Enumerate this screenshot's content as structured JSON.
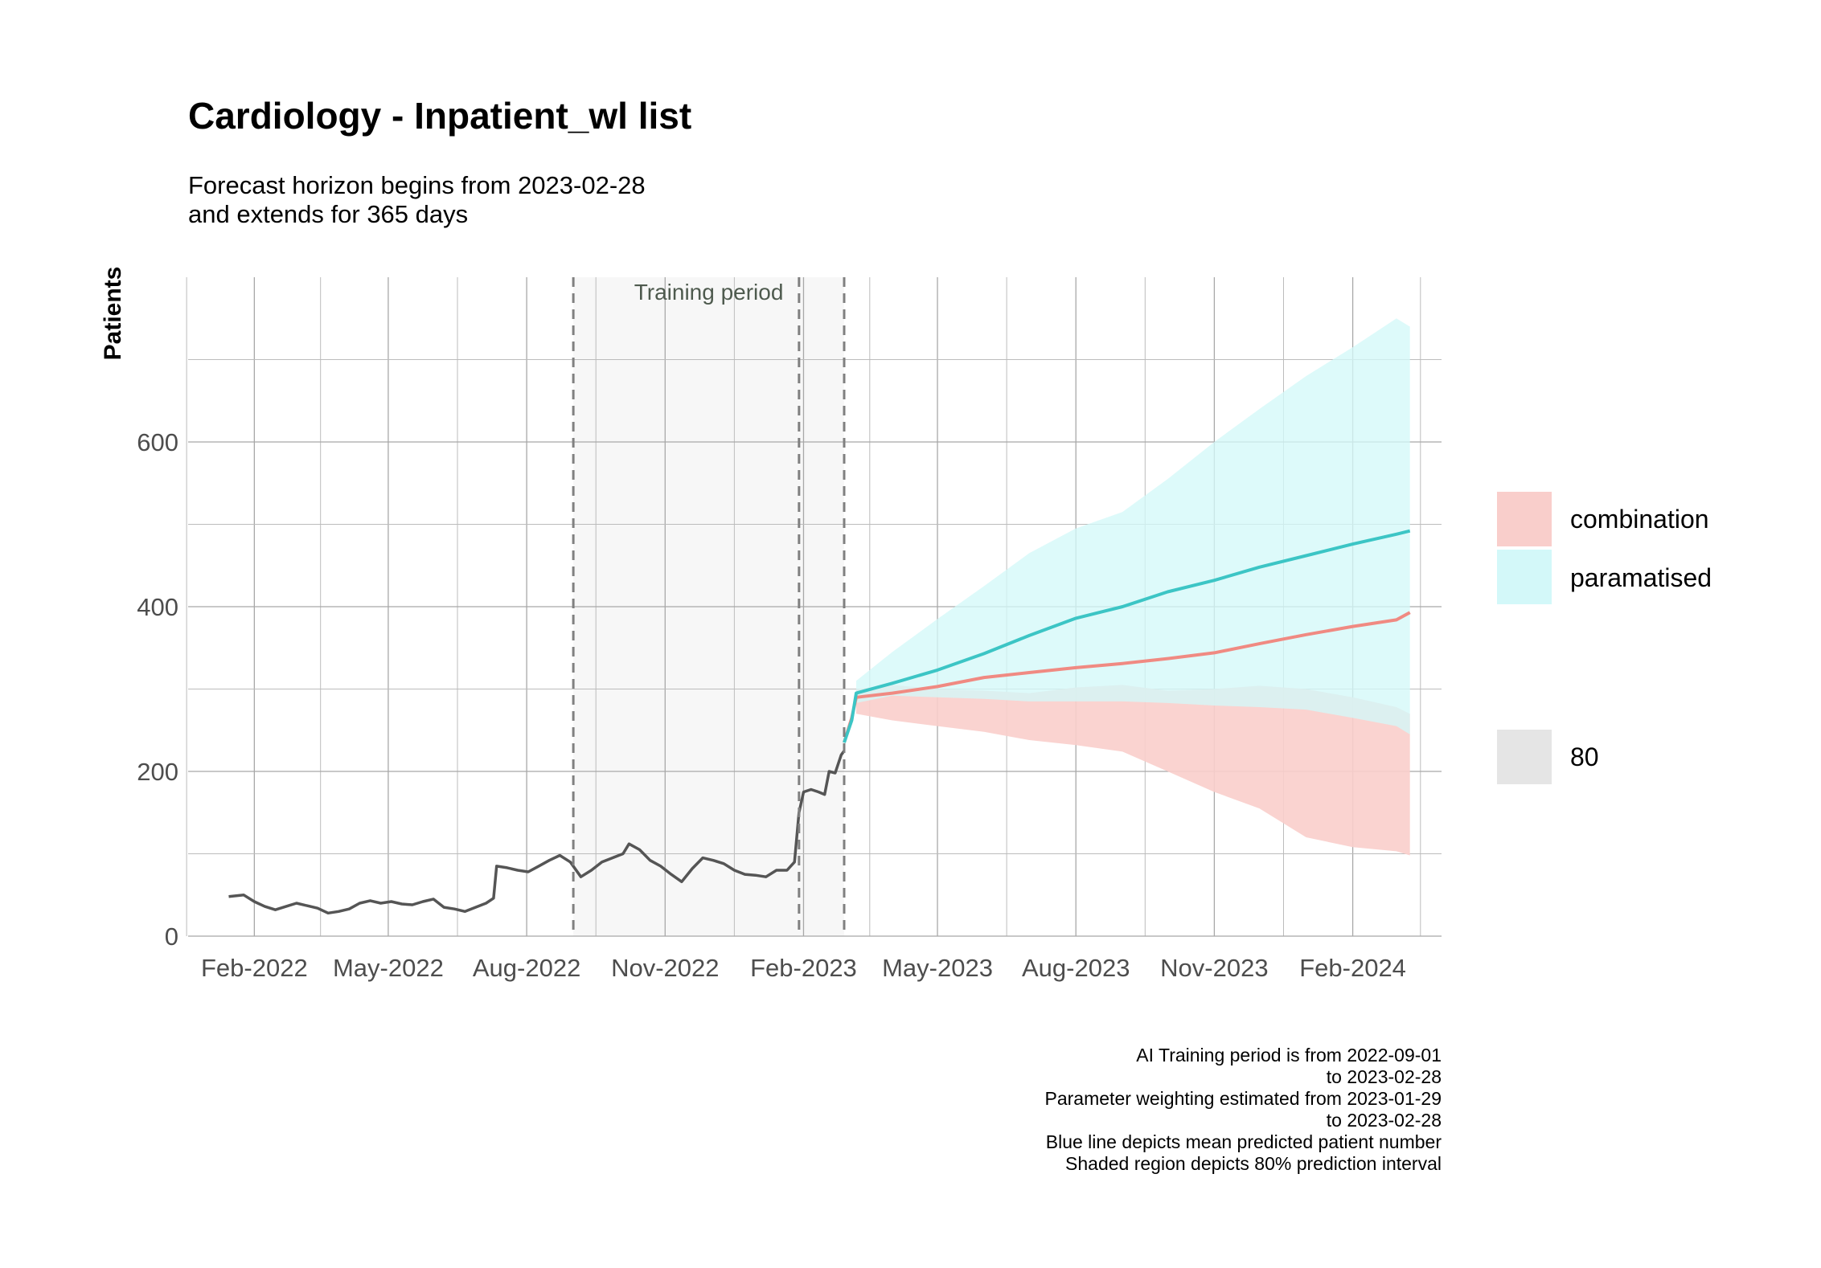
{
  "chart_data": {
    "type": "line",
    "title": "Cardiology - Inpatient_wl list",
    "subtitle_lines": [
      "Forecast horizon begins from 2023-02-28",
      "and extends for 365 days"
    ],
    "ylabel": "Patients",
    "xlabel": "",
    "x_ticks": [
      "Feb-2022",
      "May-2022",
      "Aug-2022",
      "Nov-2022",
      "Feb-2023",
      "May-2023",
      "Aug-2023",
      "Nov-2023",
      "Feb-2024"
    ],
    "x_tick_dates": [
      "2022-02-01",
      "2022-05-01",
      "2022-08-01",
      "2022-11-01",
      "2023-02-01",
      "2023-05-01",
      "2023-08-01",
      "2023-11-01",
      "2024-02-01"
    ],
    "y_ticks": [
      "0",
      "200",
      "400",
      "600"
    ],
    "y_tick_values": [
      0,
      200,
      400,
      600
    ],
    "xlim": [
      "2021-12-19",
      "2024-03-31"
    ],
    "ylim": [
      0,
      800
    ],
    "grid": true,
    "annotation": {
      "text": "Training period",
      "start": "2022-09-01",
      "end": "2023-02-28",
      "dashed_lines": [
        "2022-09-01",
        "2023-01-29",
        "2023-02-28"
      ]
    },
    "observed_series": {
      "color": "#555555",
      "points": [
        [
          "2022-01-15",
          48
        ],
        [
          "2022-01-25",
          50
        ],
        [
          "2022-02-01",
          42
        ],
        [
          "2022-02-08",
          36
        ],
        [
          "2022-02-15",
          32
        ],
        [
          "2022-02-22",
          36
        ],
        [
          "2022-03-01",
          40
        ],
        [
          "2022-03-08",
          37
        ],
        [
          "2022-03-15",
          34
        ],
        [
          "2022-03-22",
          28
        ],
        [
          "2022-03-29",
          30
        ],
        [
          "2022-04-05",
          33
        ],
        [
          "2022-04-12",
          40
        ],
        [
          "2022-04-19",
          43
        ],
        [
          "2022-04-26",
          40
        ],
        [
          "2022-05-03",
          42
        ],
        [
          "2022-05-10",
          39
        ],
        [
          "2022-05-17",
          38
        ],
        [
          "2022-05-24",
          42
        ],
        [
          "2022-05-31",
          45
        ],
        [
          "2022-06-07",
          35
        ],
        [
          "2022-06-14",
          33
        ],
        [
          "2022-06-21",
          30
        ],
        [
          "2022-06-28",
          35
        ],
        [
          "2022-07-05",
          40
        ],
        [
          "2022-07-10",
          46
        ],
        [
          "2022-07-12",
          85
        ],
        [
          "2022-07-19",
          83
        ],
        [
          "2022-07-26",
          80
        ],
        [
          "2022-08-02",
          78
        ],
        [
          "2022-08-09",
          85
        ],
        [
          "2022-08-16",
          92
        ],
        [
          "2022-08-23",
          98
        ],
        [
          "2022-08-30",
          90
        ],
        [
          "2022-09-06",
          72
        ],
        [
          "2022-09-13",
          80
        ],
        [
          "2022-09-20",
          90
        ],
        [
          "2022-09-27",
          95
        ],
        [
          "2022-10-04",
          100
        ],
        [
          "2022-10-08",
          112
        ],
        [
          "2022-10-15",
          105
        ],
        [
          "2022-10-22",
          92
        ],
        [
          "2022-10-29",
          85
        ],
        [
          "2022-11-05",
          75
        ],
        [
          "2022-11-12",
          66
        ],
        [
          "2022-11-19",
          82
        ],
        [
          "2022-11-26",
          95
        ],
        [
          "2022-12-03",
          92
        ],
        [
          "2022-12-10",
          88
        ],
        [
          "2022-12-17",
          80
        ],
        [
          "2022-12-24",
          75
        ],
        [
          "2022-12-31",
          74
        ],
        [
          "2023-01-07",
          72
        ],
        [
          "2023-01-14",
          80
        ],
        [
          "2023-01-21",
          80
        ],
        [
          "2023-01-26",
          90
        ],
        [
          "2023-01-29",
          150
        ],
        [
          "2023-02-01",
          175
        ],
        [
          "2023-02-06",
          178
        ],
        [
          "2023-02-11",
          175
        ],
        [
          "2023-02-15",
          172
        ],
        [
          "2023-02-18",
          200
        ],
        [
          "2023-02-22",
          198
        ],
        [
          "2023-02-26",
          220
        ],
        [
          "2023-02-28",
          225
        ]
      ]
    },
    "series": [
      {
        "name": "combination",
        "color": "#f08a82",
        "fill": "#f9cecb",
        "points": [
          [
            "2023-02-28",
            235
          ],
          [
            "2023-03-05",
            265
          ],
          [
            "2023-03-08",
            290
          ],
          [
            "2023-04-01",
            295
          ],
          [
            "2023-05-01",
            303
          ],
          [
            "2023-06-01",
            314
          ],
          [
            "2023-07-01",
            320
          ],
          [
            "2023-08-01",
            326
          ],
          [
            "2023-09-01",
            331
          ],
          [
            "2023-10-01",
            337
          ],
          [
            "2023-11-01",
            344
          ],
          [
            "2023-12-01",
            355
          ],
          [
            "2024-01-01",
            366
          ],
          [
            "2024-02-01",
            376
          ],
          [
            "2024-03-01",
            384
          ],
          [
            "2024-03-10",
            393
          ]
        ],
        "lower": [
          [
            "2023-03-08",
            270
          ],
          [
            "2023-04-01",
            262
          ],
          [
            "2023-05-01",
            255
          ],
          [
            "2023-06-01",
            248
          ],
          [
            "2023-07-01",
            238
          ],
          [
            "2023-08-01",
            232
          ],
          [
            "2023-09-01",
            224
          ],
          [
            "2023-10-01",
            200
          ],
          [
            "2023-11-01",
            175
          ],
          [
            "2023-12-01",
            155
          ],
          [
            "2024-01-01",
            120
          ],
          [
            "2024-02-01",
            108
          ],
          [
            "2024-03-01",
            103
          ],
          [
            "2024-03-10",
            98
          ]
        ],
        "upper": [
          [
            "2023-03-08",
            300
          ],
          [
            "2023-04-01",
            305
          ],
          [
            "2023-05-01",
            300
          ],
          [
            "2023-06-01",
            298
          ],
          [
            "2023-07-01",
            295
          ],
          [
            "2023-08-01",
            302
          ],
          [
            "2023-09-01",
            305
          ],
          [
            "2023-10-01",
            298
          ],
          [
            "2023-11-01",
            300
          ],
          [
            "2023-12-01",
            304
          ],
          [
            "2024-01-01",
            300
          ],
          [
            "2024-02-01",
            290
          ],
          [
            "2024-03-01",
            278
          ],
          [
            "2024-03-10",
            270
          ]
        ]
      },
      {
        "name": "paramatised",
        "color": "#3cc5c5",
        "fill": "#d3f8f9",
        "points": [
          [
            "2023-02-28",
            235
          ],
          [
            "2023-03-05",
            262
          ],
          [
            "2023-03-08",
            295
          ],
          [
            "2023-04-01",
            307
          ],
          [
            "2023-05-01",
            323
          ],
          [
            "2023-06-01",
            343
          ],
          [
            "2023-07-01",
            365
          ],
          [
            "2023-08-01",
            386
          ],
          [
            "2023-09-01",
            400
          ],
          [
            "2023-10-01",
            418
          ],
          [
            "2023-11-01",
            432
          ],
          [
            "2023-12-01",
            448
          ],
          [
            "2024-01-01",
            462
          ],
          [
            "2024-02-01",
            476
          ],
          [
            "2024-03-01",
            488
          ],
          [
            "2024-03-10",
            492
          ]
        ],
        "lower": [
          [
            "2023-03-08",
            283
          ],
          [
            "2023-04-01",
            292
          ],
          [
            "2023-05-01",
            290
          ],
          [
            "2023-06-01",
            288
          ],
          [
            "2023-07-01",
            285
          ],
          [
            "2023-08-01",
            285
          ],
          [
            "2023-09-01",
            285
          ],
          [
            "2023-10-01",
            283
          ],
          [
            "2023-11-01",
            280
          ],
          [
            "2023-12-01",
            278
          ],
          [
            "2024-01-01",
            275
          ],
          [
            "2024-02-01",
            265
          ],
          [
            "2024-03-01",
            255
          ],
          [
            "2024-03-10",
            245
          ]
        ],
        "upper": [
          [
            "2023-03-08",
            310
          ],
          [
            "2023-04-01",
            345
          ],
          [
            "2023-05-01",
            385
          ],
          [
            "2023-06-01",
            425
          ],
          [
            "2023-07-01",
            465
          ],
          [
            "2023-08-01",
            495
          ],
          [
            "2023-09-01",
            515
          ],
          [
            "2023-10-01",
            555
          ],
          [
            "2023-11-01",
            600
          ],
          [
            "2023-12-01",
            640
          ],
          [
            "2024-01-01",
            680
          ],
          [
            "2024-02-01",
            715
          ],
          [
            "2024-03-01",
            750
          ],
          [
            "2024-03-10",
            740
          ]
        ]
      }
    ],
    "overlap_fill": "#d8eeec",
    "legend": {
      "position": "right",
      "entries": [
        {
          "label": "combination",
          "color": "#f9cecb"
        },
        {
          "label": "paramatised",
          "color": "#d3f8f9"
        }
      ],
      "interval_entry": {
        "label": "80",
        "color": "#e5e5e5"
      }
    },
    "caption_lines": [
      "AI Training period is from 2022-09-01",
      "to 2023-02-28",
      "Parameter weighting estimated from 2023-01-29",
      "to 2023-02-28",
      "Blue line depicts mean predicted patient number",
      "Shaded region depicts 80% prediction interval"
    ]
  }
}
